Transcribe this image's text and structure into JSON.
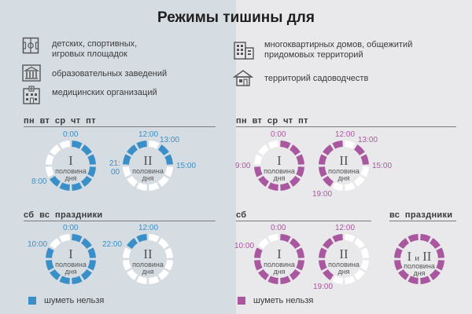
{
  "title": "Режимы тишины для",
  "left_places": [
    {
      "icon": "playground-icon",
      "text": "детских, спортивных,\nигровых площадок"
    },
    {
      "icon": "school-icon",
      "text": "образовательных заведений"
    },
    {
      "icon": "hospital-icon",
      "text": "медицинских организаций"
    }
  ],
  "right_places": [
    {
      "icon": "apartment-building-icon",
      "text": "многоквартирных домов, общежитий\nпридомовых территорий"
    },
    {
      "icon": "garden-house-icon",
      "text": "территорий садоводчеств"
    }
  ],
  "dial_text": {
    "first": "I",
    "second": "II",
    "half_word": "половина",
    "day_word": "дня",
    "both_i": "I",
    "both_and": "и",
    "both_ii": "II"
  },
  "colors": {
    "left_accent": "#3a8fc9",
    "right_accent": "#a9589f",
    "ring_empty": "#ffffff"
  },
  "sections": {
    "weekdays": "пн  вт  ср  чт  пт",
    "weekend_holidays": "сб  вс  праздники",
    "saturday": "сб",
    "sunday_holidays": "вс  праздники"
  },
  "times": {
    "lw_first_0": "0:00",
    "lw_first_8": "8:00",
    "lw_second_12": "12:00",
    "lw_second_13": "13:00",
    "lw_second_15": "15:00",
    "lw_second_21": "21:",
    "lw_second_21b": "00",
    "lh_first_0": "0:00",
    "lh_first_10": "10:00",
    "lh_second_12": "12:00",
    "lh_second_22": "22:00",
    "rw_first_0": "0:00",
    "rw_first_9": "9:00",
    "rw_second_12": "12:00",
    "rw_second_13": "13:00",
    "rw_second_15": "15:00",
    "rw_second_19": "19:00",
    "rs_first_0": "0:00",
    "rs_first_10": "10:00",
    "rs_second_12": "12:00",
    "rs_second_19": "19:00"
  },
  "quiet_intervals": {
    "lw_first": [
      [
        0,
        8
      ]
    ],
    "lw_second": [
      [
        13,
        15
      ],
      [
        21,
        24
      ]
    ],
    "lh_first": [
      [
        0,
        10
      ]
    ],
    "lh_second": [
      [
        22,
        24
      ]
    ],
    "rw_first": [
      [
        0,
        9
      ]
    ],
    "rw_second": [
      [
        13,
        15
      ],
      [
        19,
        24
      ]
    ],
    "rs_first": [
      [
        0,
        10
      ]
    ],
    "rs_second": [
      [
        19,
        24
      ]
    ],
    "rsun_both": [
      [
        0,
        24
      ]
    ]
  },
  "legend": "шуметь нельзя"
}
